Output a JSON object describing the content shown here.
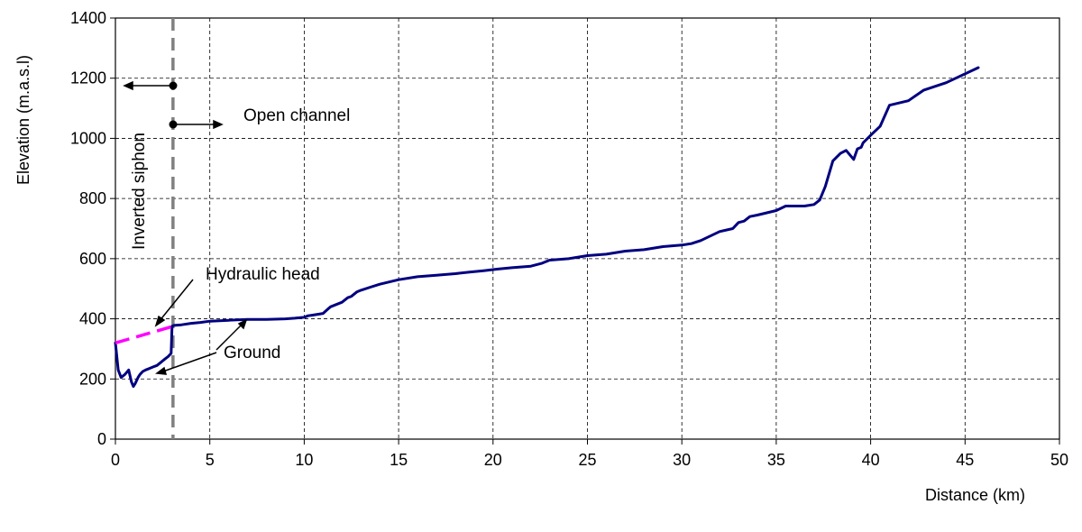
{
  "chart_data": {
    "type": "line",
    "title": "",
    "xlabel": "Distance (km)",
    "ylabel": "Elevation (m.a.s.l)",
    "xlim": [
      0,
      50
    ],
    "ylim": [
      0,
      1400
    ],
    "x_ticks": [
      0,
      5,
      10,
      15,
      20,
      25,
      30,
      35,
      40,
      45,
      50
    ],
    "y_ticks": [
      0,
      200,
      400,
      600,
      800,
      1000,
      1200,
      1400
    ],
    "grid": true,
    "grid_style": "dashed",
    "series": [
      {
        "color": "#000080",
        "style": "solid",
        "x": [
          0,
          0.15,
          0.3,
          0.5,
          0.7,
          0.85,
          0.95,
          1.05,
          1.2,
          1.3,
          1.45,
          1.6,
          1.8,
          2.0,
          2.2,
          2.4,
          2.6,
          2.8,
          2.95,
          3.0,
          3.1,
          3.5,
          4.0,
          4.5,
          5.0,
          6.0,
          7.0,
          8.0,
          9.0,
          9.5,
          10.0,
          10.2,
          10.4,
          10.7,
          11.0,
          11.3,
          11.4,
          12.0,
          12.3,
          12.5,
          12.8,
          13.0,
          13.5,
          14.0,
          15.0,
          16.0,
          17.0,
          18.0,
          18.7,
          19.5,
          20.2,
          21.0,
          22.0,
          22.6,
          23.0,
          24.0,
          25.0,
          26.0,
          27.0,
          28.0,
          29.0,
          30.0,
          30.5,
          31.0,
          32.0,
          32.7,
          33.0,
          33.3,
          33.6,
          34.0,
          35.0,
          35.5,
          36.0,
          36.5,
          37.0,
          37.3,
          37.6,
          38.0,
          38.4,
          38.7,
          38.9,
          39.1,
          39.3,
          39.5,
          39.6,
          40.0,
          40.5,
          41.0,
          42.0,
          42.8,
          44.0,
          45.7
        ],
        "y": [
          320,
          230,
          205,
          215,
          230,
          190,
          175,
          185,
          205,
          215,
          225,
          230,
          235,
          240,
          245,
          255,
          265,
          275,
          285,
          375,
          378,
          380,
          385,
          388,
          392,
          395,
          398,
          398,
          400,
          402,
          405,
          410,
          412,
          415,
          418,
          435,
          440,
          455,
          470,
          475,
          490,
          495,
          505,
          515,
          530,
          540,
          545,
          550,
          555,
          560,
          565,
          570,
          575,
          585,
          595,
          600,
          610,
          615,
          625,
          630,
          640,
          645,
          650,
          660,
          690,
          700,
          720,
          725,
          740,
          745,
          760,
          775,
          775,
          775,
          780,
          795,
          840,
          925,
          950,
          960,
          945,
          930,
          965,
          970,
          985,
          1010,
          1040,
          1110,
          1125,
          1160,
          1185,
          1235
        ]
      },
      {
        "color": "#ff00ff",
        "style": "dashed",
        "x": [
          0,
          3.05
        ],
        "y": [
          320,
          375
        ]
      }
    ],
    "vertical_line": {
      "x": 3.05,
      "color": "#808080",
      "style": "dashed"
    },
    "annotations": [
      {
        "text": "Inverted siphon",
        "orientation": "vertical"
      },
      {
        "text": "Open channel"
      },
      {
        "text": "Hydraulic head"
      },
      {
        "text": "Ground"
      }
    ]
  }
}
